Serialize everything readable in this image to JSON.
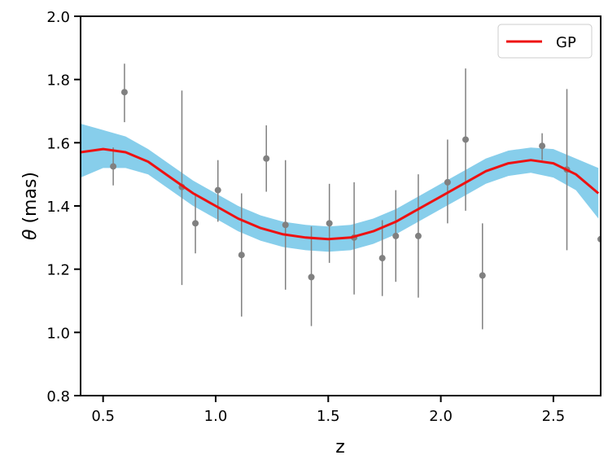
{
  "chart_data": {
    "type": "line",
    "xlabel": "z",
    "ylabel_symbol": "θ",
    "ylabel_unit": " (mas)",
    "xlim": [
      0.4,
      2.71
    ],
    "ylim": [
      0.8,
      2.0
    ],
    "x_ticks": [
      0.5,
      1.0,
      1.5,
      2.0,
      2.5
    ],
    "x_tick_labels": [
      "0.5",
      "1.0",
      "1.5",
      "2.0",
      "2.5"
    ],
    "y_ticks": [
      0.8,
      1.0,
      1.2,
      1.4,
      1.6,
      1.8,
      2.0
    ],
    "y_tick_labels": [
      "0.8",
      "1.0",
      "1.2",
      "1.4",
      "1.6",
      "1.8",
      "2.0"
    ],
    "grid": false,
    "legend": {
      "placement": "top-right",
      "entries": [
        "GP"
      ]
    },
    "colors": {
      "gp_line": "#ee1111",
      "gp_band": "#87ceeb",
      "points": "#808080"
    },
    "series": [
      {
        "name": "GP",
        "kind": "line_with_band",
        "x": [
          0.4,
          0.5,
          0.6,
          0.7,
          0.8,
          0.9,
          1.0,
          1.1,
          1.2,
          1.3,
          1.4,
          1.5,
          1.6,
          1.7,
          1.8,
          1.9,
          2.0,
          2.1,
          2.2,
          2.3,
          2.4,
          2.5,
          2.6,
          2.7
        ],
        "y": [
          1.57,
          1.58,
          1.57,
          1.54,
          1.49,
          1.44,
          1.4,
          1.36,
          1.33,
          1.31,
          1.3,
          1.295,
          1.3,
          1.32,
          1.35,
          1.39,
          1.43,
          1.47,
          1.51,
          1.535,
          1.545,
          1.535,
          1.5,
          1.44
        ],
        "lower": [
          1.49,
          1.52,
          1.52,
          1.5,
          1.45,
          1.4,
          1.36,
          1.32,
          1.29,
          1.27,
          1.26,
          1.255,
          1.26,
          1.28,
          1.31,
          1.35,
          1.39,
          1.43,
          1.47,
          1.495,
          1.505,
          1.49,
          1.45,
          1.36
        ],
        "upper": [
          1.66,
          1.64,
          1.62,
          1.58,
          1.53,
          1.48,
          1.44,
          1.4,
          1.37,
          1.35,
          1.34,
          1.335,
          1.34,
          1.36,
          1.39,
          1.43,
          1.47,
          1.51,
          1.55,
          1.575,
          1.585,
          1.58,
          1.55,
          1.52
        ]
      },
      {
        "kind": "errorbar",
        "x": [
          0.545,
          0.595,
          0.85,
          0.91,
          1.01,
          1.115,
          1.225,
          1.31,
          1.425,
          1.505,
          1.615,
          1.74,
          1.8,
          1.9,
          2.03,
          2.11,
          2.185,
          2.45,
          2.56,
          2.71
        ],
        "y": [
          1.525,
          1.76,
          1.46,
          1.345,
          1.45,
          1.245,
          1.55,
          1.34,
          1.175,
          1.345,
          1.3,
          1.235,
          1.305,
          1.305,
          1.475,
          1.61,
          1.18,
          1.59,
          1.515,
          1.295
        ],
        "yerr_low": [
          1.465,
          1.665,
          1.15,
          1.25,
          1.35,
          1.05,
          1.445,
          1.135,
          1.02,
          1.22,
          1.12,
          1.115,
          1.16,
          1.11,
          1.345,
          1.385,
          1.01,
          1.545,
          1.26,
          1.19
        ],
        "yerr_high": [
          1.585,
          1.85,
          1.765,
          1.44,
          1.545,
          1.44,
          1.655,
          1.545,
          1.335,
          1.47,
          1.475,
          1.355,
          1.45,
          1.5,
          1.61,
          1.835,
          1.345,
          1.63,
          1.77,
          1.4
        ]
      }
    ]
  }
}
